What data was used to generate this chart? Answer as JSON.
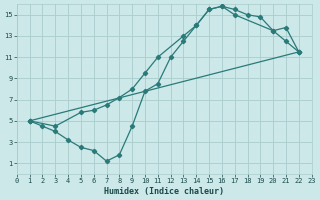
{
  "xlabel": "Humidex (Indice chaleur)",
  "bg_color": "#cce8e8",
  "grid_color": "#aacccc",
  "line_color": "#2a7a7a",
  "xlim": [
    0,
    23
  ],
  "ylim": [
    0,
    16
  ],
  "xticks": [
    0,
    1,
    2,
    3,
    4,
    5,
    6,
    7,
    8,
    9,
    10,
    11,
    12,
    13,
    14,
    15,
    16,
    17,
    18,
    19,
    20,
    21,
    22,
    23
  ],
  "yticks": [
    1,
    3,
    5,
    7,
    9,
    11,
    13,
    15
  ],
  "line1": {
    "x": [
      1,
      2,
      3,
      4,
      5,
      6,
      7,
      8,
      9,
      10,
      11,
      12,
      13,
      14,
      15,
      16,
      17,
      18,
      19,
      20,
      21,
      22
    ],
    "y": [
      5,
      4.5,
      4,
      3.2,
      2.5,
      2.2,
      1.2,
      1.8,
      4.5,
      7.8,
      8.5,
      11,
      12.5,
      14,
      15.5,
      15.8,
      15.5,
      15.0,
      14.8,
      13.5,
      12.5,
      11.5
    ]
  },
  "line2": {
    "x": [
      1,
      3,
      5,
      6,
      7,
      8,
      9,
      10,
      11,
      13,
      14,
      15,
      16,
      17,
      20,
      21,
      22
    ],
    "y": [
      5,
      4.5,
      5.8,
      6.0,
      6.5,
      7.2,
      8.0,
      9.5,
      11.0,
      13.0,
      14.0,
      15.5,
      15.8,
      15.0,
      13.5,
      13.8,
      11.5
    ]
  },
  "line3": {
    "x": [
      1,
      22
    ],
    "y": [
      5,
      11.5
    ]
  }
}
